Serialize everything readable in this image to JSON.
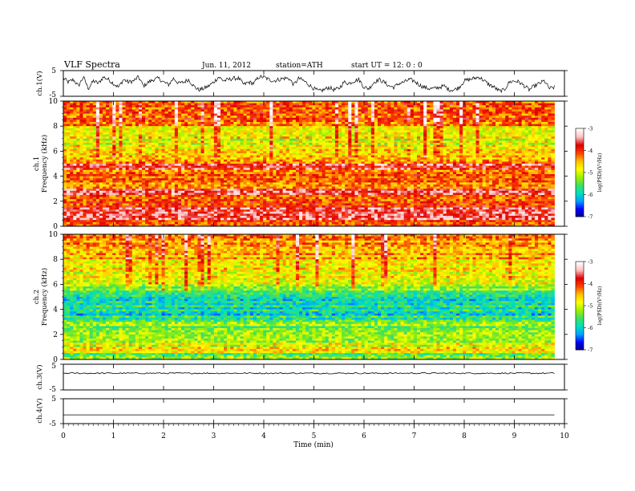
{
  "header": {
    "title": "VLF  Spectra",
    "date": "Jun. 11, 2012",
    "station": "station=ATH",
    "start_ut": "start  UT  =    12: 0   : 0"
  },
  "chart_data": [
    {
      "type": "line",
      "panel": "ch1",
      "ylabel": "ch.1(V)",
      "ytick_labels": [
        "5",
        "-5"
      ],
      "ylim": [
        -5,
        5
      ],
      "xlim": [
        0,
        10
      ],
      "data_end": 9.8,
      "x_step": 0.1,
      "y": [
        2.0,
        0.5,
        1.5,
        -1.0,
        2.5,
        -2.0,
        1.0,
        0.0,
        2.5,
        1.5,
        0.0,
        -1.5,
        1.5,
        0.5,
        1.0,
        2.5,
        -1.0,
        0.5,
        1.5,
        2.0,
        0.5,
        -0.5,
        2.0,
        0.0,
        0.5,
        1.5,
        -1.0,
        -2.5,
        -2.0,
        -1.0,
        0.5,
        2.5,
        1.0,
        1.5,
        2.0,
        2.0,
        -0.5,
        0.5,
        0.0,
        2.5,
        2.5,
        1.5,
        1.0,
        1.5,
        2.0,
        2.0,
        -0.5,
        2.0,
        1.0,
        -0.5,
        -2.0,
        -3.0,
        -2.5,
        -1.5,
        -2.5,
        -2.0,
        0.5,
        0.0,
        1.0,
        1.5,
        -1.5,
        -2.0,
        0.5,
        1.5,
        0.5,
        -1.0,
        -1.5,
        0.0,
        0.5,
        1.5,
        1.0,
        -0.5,
        -1.5,
        -2.0,
        -2.0,
        -1.5,
        -1.0,
        -2.5,
        -2.5,
        -1.5,
        1.0,
        1.5,
        2.0,
        2.5,
        1.0,
        -0.5,
        -1.5,
        -3.0,
        -2.5,
        0.5,
        1.0,
        0.5,
        -1.0,
        -2.5,
        -1.0,
        0.0,
        1.0,
        -2.0,
        -1.5
      ]
    },
    {
      "type": "heatmap",
      "panel": "ch1-spectrogram",
      "ylabel": "ch.1\nFrequency  (kHz)",
      "xlim": [
        0,
        10
      ],
      "ylim": [
        0,
        10
      ],
      "data_end": 9.8,
      "ytick_labels": [
        "0",
        "2",
        "4",
        "6",
        "8",
        "10"
      ],
      "value_range": [
        -7,
        -3
      ],
      "colorbar_label": "log(PSD)(V²/Hz)",
      "colorbar_ticks": [
        "-3",
        "-4",
        "-5",
        "-6",
        "-7"
      ],
      "freq_khz": [
        0.25,
        0.75,
        1.25,
        1.75,
        2.25,
        2.75,
        3.25,
        3.75,
        4.25,
        4.75,
        5.25,
        5.75,
        6.25,
        6.75,
        7.25,
        7.75,
        8.25,
        8.75,
        9.25,
        9.75
      ],
      "log_psd_mean": [
        -4.0,
        -3.6,
        -3.8,
        -3.9,
        -4.2,
        -3.8,
        -4.3,
        -4.1,
        -4.2,
        -3.6,
        -4.4,
        -4.6,
        -4.8,
        -4.9,
        -4.8,
        -4.7,
        -4.3,
        -4.2,
        -4.0,
        -4.1
      ]
    },
    {
      "type": "heatmap",
      "panel": "ch2-spectrogram",
      "ylabel": "ch.2\nFrequency  (kHz)",
      "xlim": [
        0,
        10
      ],
      "ylim": [
        0,
        10
      ],
      "data_end": 9.8,
      "ytick_labels": [
        "0",
        "2",
        "4",
        "6",
        "8",
        "10"
      ],
      "value_range": [
        -7,
        -3
      ],
      "colorbar_label": "log(PSD)(V²/Hz)",
      "colorbar_ticks": [
        "-3",
        "-4",
        "-5",
        "-6",
        "-7"
      ],
      "freq_khz": [
        0.25,
        0.75,
        1.25,
        1.75,
        2.25,
        2.75,
        3.25,
        3.75,
        4.25,
        4.75,
        5.25,
        5.75,
        6.25,
        6.75,
        7.25,
        7.75,
        8.25,
        8.75,
        9.25,
        9.75
      ],
      "log_psd_mean": [
        -5.4,
        -4.6,
        -5.0,
        -5.1,
        -5.2,
        -5.3,
        -5.7,
        -5.8,
        -5.9,
        -5.8,
        -5.6,
        -5.2,
        -5.0,
        -4.9,
        -4.8,
        -4.7,
        -4.5,
        -4.5,
        -4.4,
        -4.3
      ]
    },
    {
      "type": "line",
      "panel": "ch3",
      "ylabel": "ch.3(V)",
      "ytick_labels": [
        "5",
        "-5"
      ],
      "ylim": [
        -5,
        5
      ],
      "xlim": [
        0,
        10
      ],
      "data_end": 9.8,
      "value": 1.5
    },
    {
      "type": "line",
      "panel": "ch4",
      "ylabel": "ch.4(V)",
      "ytick_labels": [
        "5",
        "-5"
      ],
      "ylim": [
        -5,
        5
      ],
      "xlim": [
        0,
        10
      ],
      "data_end": 9.8,
      "value": -1.5
    }
  ],
  "xaxis": {
    "label": "Time  (min)",
    "ticks": [
      "0",
      "1",
      "2",
      "3",
      "4",
      "5",
      "6",
      "7",
      "8",
      "9",
      "10"
    ]
  },
  "colors": {
    "colormap": [
      "#000080",
      "#0000ff",
      "#00a0ff",
      "#00e0c0",
      "#40e060",
      "#a0f000",
      "#ffff00",
      "#ffc000",
      "#ff4000",
      "#dd0000",
      "#ffc0c0",
      "#ffffff"
    ],
    "trace": "#000000"
  }
}
